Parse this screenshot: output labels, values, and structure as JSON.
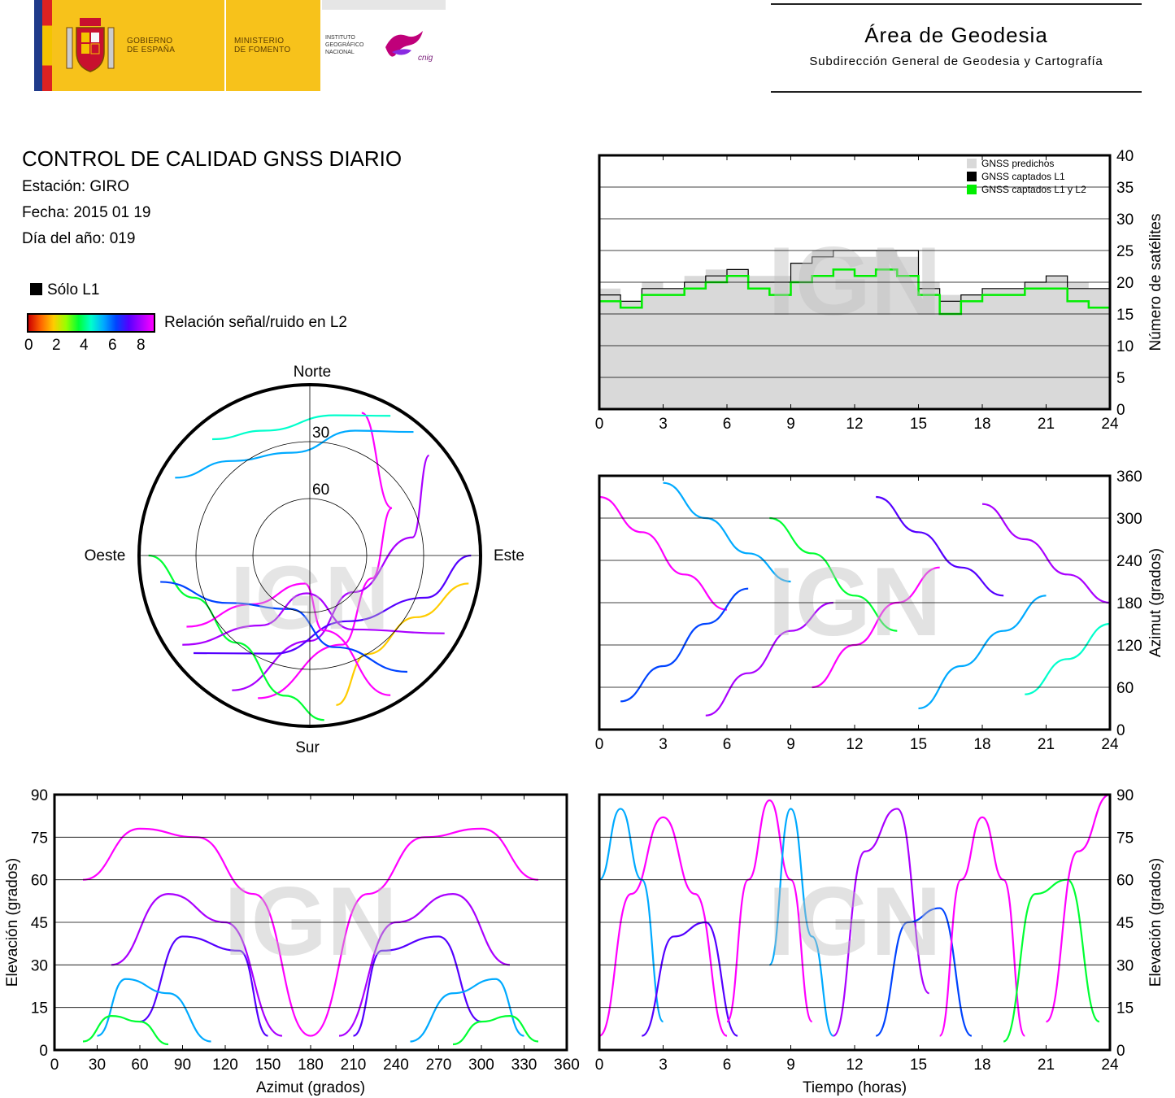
{
  "header": {
    "gov_line1": "GOBIERNO",
    "gov_line2": "DE ESPAÑA",
    "min_line1": "MINISTERIO",
    "min_line2": "DE FOMENTO",
    "ign_line1": "INSTITUTO",
    "ign_line2": "GEOGRÁFICO",
    "ign_line3": "NACIONAL",
    "cnig": "cnig",
    "title": "Área de Geodesia",
    "subtitle": "Subdirección General de Geodesia y Cartografía"
  },
  "info": {
    "title": "CONTROL DE CALIDAD GNSS DIARIO",
    "station": "Estación: GIRO",
    "date": "Fecha: 2015 01 19",
    "doy": "Día del año: 019"
  },
  "legend": {
    "l1_only": "Sólo L1",
    "colorbar_label": "Relación señal/ruido en L2",
    "colorbar_ticks": [
      "0",
      "2",
      "4",
      "6",
      "8"
    ],
    "colorbar_colors": [
      "#cc0000",
      "#ffcc00",
      "#00ff33",
      "#00aaff",
      "#5500ff",
      "#ff00ff"
    ]
  },
  "watermark": "IGN",
  "chart_data": [
    {
      "id": "satellite_count",
      "type": "line",
      "x_ticks": [
        "0",
        "3",
        "6",
        "9",
        "12",
        "15",
        "18",
        "21",
        "24"
      ],
      "y_ticks": [
        "0",
        "5",
        "10",
        "15",
        "20",
        "25",
        "30",
        "35",
        "40"
      ],
      "xlim": [
        0,
        24
      ],
      "ylim": [
        0,
        40
      ],
      "ylabel": "Número de satélites",
      "grid": true,
      "legend_position": "top-right",
      "series": [
        {
          "name": "GNSS predichos",
          "color": "#d9d9d9",
          "x": [
            0,
            1,
            2,
            3,
            4,
            5,
            6,
            7,
            8,
            9,
            10,
            11,
            12,
            13,
            14,
            15,
            16,
            17,
            18,
            19,
            20,
            21,
            22,
            23,
            24
          ],
          "values": [
            19,
            17,
            20,
            19,
            21,
            22,
            22,
            21,
            21,
            23,
            25,
            24,
            24,
            25,
            24,
            20,
            18,
            18,
            19,
            19,
            20,
            21,
            20,
            19,
            18
          ]
        },
        {
          "name": "GNSS captados L1",
          "color": "#000000",
          "x": [
            0,
            1,
            2,
            3,
            4,
            5,
            6,
            7,
            8,
            9,
            10,
            11,
            12,
            13,
            14,
            15,
            16,
            17,
            18,
            19,
            20,
            21,
            22,
            23,
            24
          ],
          "values": [
            18,
            17,
            19,
            19,
            20,
            21,
            22,
            20,
            20,
            23,
            24,
            25,
            25,
            25,
            25,
            19,
            17,
            18,
            19,
            19,
            20,
            21,
            19,
            19,
            18
          ]
        },
        {
          "name": "GNSS captados L1 y L2",
          "color": "#00ee00",
          "x": [
            0,
            1,
            2,
            3,
            4,
            5,
            6,
            7,
            8,
            9,
            10,
            11,
            12,
            13,
            14,
            15,
            16,
            17,
            18,
            19,
            20,
            21,
            22,
            23,
            24
          ],
          "values": [
            17,
            16,
            18,
            18,
            19,
            20,
            21,
            19,
            18,
            20,
            21,
            22,
            21,
            22,
            21,
            18,
            15,
            17,
            18,
            18,
            19,
            19,
            17,
            16,
            17
          ]
        }
      ]
    },
    {
      "id": "skyplot",
      "type": "scatter",
      "labels": {
        "north": "Norte",
        "south": "Sur",
        "east": "Este",
        "west": "Oeste"
      },
      "ring_labels": [
        "30",
        "60"
      ],
      "tracks": [
        {
          "color": "#ff00ff",
          "points": [
            [
              200,
              10
            ],
            [
              160,
              40
            ],
            [
              110,
              55
            ],
            [
              60,
              40
            ],
            [
              20,
              10
            ]
          ]
        },
        {
          "color": "#aa00ff",
          "points": [
            [
              210,
              8
            ],
            [
              180,
              45
            ],
            [
              130,
              60
            ],
            [
              80,
              35
            ],
            [
              50,
              8
            ]
          ]
        },
        {
          "color": "#5500ff",
          "points": [
            [
              230,
              10
            ],
            [
              200,
              35
            ],
            [
              150,
              50
            ],
            [
              110,
              25
            ],
            [
              90,
              5
            ]
          ]
        },
        {
          "color": "#00aaff",
          "points": [
            [
              300,
              8
            ],
            [
              320,
              25
            ],
            [
              350,
              35
            ],
            [
              20,
              20
            ],
            [
              40,
              5
            ]
          ]
        },
        {
          "color": "#00ff33",
          "points": [
            [
              270,
              5
            ],
            [
              250,
              25
            ],
            [
              220,
              30
            ],
            [
              190,
              15
            ],
            [
              175,
              3
            ]
          ]
        },
        {
          "color": "#ffcc00",
          "points": [
            [
              100,
              5
            ],
            [
              120,
              25
            ],
            [
              150,
              30
            ],
            [
              170,
              10
            ]
          ]
        },
        {
          "color": "#ff00ff",
          "points": [
            [
              150,
              5
            ],
            [
              170,
              50
            ],
            [
              190,
              75
            ],
            [
              230,
              50
            ],
            [
              240,
              15
            ]
          ]
        },
        {
          "color": "#0044ff",
          "points": [
            [
              140,
              10
            ],
            [
              165,
              40
            ],
            [
              200,
              60
            ],
            [
              240,
              40
            ],
            [
              260,
              10
            ]
          ]
        },
        {
          "color": "#00ffcc",
          "points": [
            [
              320,
              10
            ],
            [
              340,
              20
            ],
            [
              10,
              15
            ],
            [
              30,
              5
            ]
          ]
        },
        {
          "color": "#aa00ff",
          "points": [
            [
              120,
              8
            ],
            [
              150,
              45
            ],
            [
              185,
              70
            ],
            [
              215,
              45
            ],
            [
              235,
              8
            ]
          ]
        }
      ]
    },
    {
      "id": "azimuth_time",
      "type": "scatter",
      "x_ticks": [
        "0",
        "3",
        "6",
        "9",
        "12",
        "15",
        "18",
        "21",
        "24"
      ],
      "y_ticks": [
        "0",
        "60",
        "120",
        "180",
        "240",
        "300",
        "360"
      ],
      "xlim": [
        0,
        24
      ],
      "ylim": [
        0,
        360
      ],
      "ylabel": "Azimut (grados)",
      "grid": true,
      "tracks": [
        {
          "color": "#ff00ff",
          "x": [
            0,
            2,
            4,
            6
          ],
          "values": [
            330,
            280,
            220,
            170
          ]
        },
        {
          "color": "#0044ff",
          "x": [
            1,
            3,
            5,
            7
          ],
          "values": [
            40,
            90,
            150,
            200
          ]
        },
        {
          "color": "#00aaff",
          "x": [
            3,
            5,
            7,
            9
          ],
          "values": [
            350,
            300,
            250,
            210
          ]
        },
        {
          "color": "#aa00ff",
          "x": [
            5,
            7,
            9,
            11
          ],
          "values": [
            20,
            80,
            140,
            180
          ]
        },
        {
          "color": "#00ff33",
          "x": [
            8,
            10,
            12,
            14
          ],
          "values": [
            300,
            250,
            190,
            140
          ]
        },
        {
          "color": "#ff00ff",
          "x": [
            10,
            12,
            14,
            16
          ],
          "values": [
            60,
            120,
            180,
            230
          ]
        },
        {
          "color": "#5500ff",
          "x": [
            13,
            15,
            17,
            19
          ],
          "values": [
            330,
            280,
            230,
            190
          ]
        },
        {
          "color": "#00aaff",
          "x": [
            15,
            17,
            19,
            21
          ],
          "values": [
            30,
            90,
            140,
            190
          ]
        },
        {
          "color": "#aa00ff",
          "x": [
            18,
            20,
            22,
            24
          ],
          "values": [
            320,
            270,
            220,
            180
          ]
        },
        {
          "color": "#00ffcc",
          "x": [
            20,
            22,
            24
          ],
          "values": [
            50,
            100,
            150
          ]
        }
      ]
    },
    {
      "id": "elevation_azimuth",
      "type": "scatter",
      "x_ticks": [
        "0",
        "30",
        "60",
        "90",
        "120",
        "150",
        "180",
        "210",
        "240",
        "270",
        "300",
        "330",
        "360"
      ],
      "y_ticks": [
        "0",
        "15",
        "30",
        "45",
        "60",
        "75",
        "90"
      ],
      "xlim": [
        0,
        360
      ],
      "ylim": [
        0,
        90
      ],
      "xlabel": "Azimut (grados)",
      "ylabel": "Elevación (grados)",
      "grid": true,
      "tracks": [
        {
          "color": "#ff00ff",
          "x": [
            20,
            60,
            100,
            140,
            180
          ],
          "values": [
            60,
            78,
            75,
            55,
            5
          ]
        },
        {
          "color": "#ff00ff",
          "x": [
            180,
            220,
            260,
            300,
            340
          ],
          "values": [
            5,
            55,
            75,
            78,
            60
          ]
        },
        {
          "color": "#aa00ff",
          "x": [
            40,
            80,
            120,
            160
          ],
          "values": [
            30,
            55,
            45,
            5
          ]
        },
        {
          "color": "#aa00ff",
          "x": [
            200,
            240,
            280,
            320
          ],
          "values": [
            5,
            45,
            55,
            30
          ]
        },
        {
          "color": "#5500ff",
          "x": [
            60,
            90,
            130,
            150
          ],
          "values": [
            10,
            40,
            35,
            5
          ]
        },
        {
          "color": "#5500ff",
          "x": [
            210,
            230,
            270,
            300
          ],
          "values": [
            5,
            35,
            40,
            10
          ]
        },
        {
          "color": "#00aaff",
          "x": [
            30,
            50,
            80,
            110
          ],
          "values": [
            5,
            25,
            20,
            3
          ]
        },
        {
          "color": "#00aaff",
          "x": [
            250,
            280,
            310,
            330
          ],
          "values": [
            3,
            20,
            25,
            5
          ]
        },
        {
          "color": "#00ff33",
          "x": [
            20,
            40,
            60,
            80
          ],
          "values": [
            3,
            12,
            10,
            2
          ]
        },
        {
          "color": "#00ff33",
          "x": [
            280,
            300,
            320,
            340
          ],
          "values": [
            2,
            10,
            12,
            3
          ]
        }
      ]
    },
    {
      "id": "elevation_time",
      "type": "scatter",
      "x_ticks": [
        "0",
        "3",
        "6",
        "9",
        "12",
        "15",
        "18",
        "21",
        "24"
      ],
      "y_ticks": [
        "0",
        "15",
        "30",
        "45",
        "60",
        "75",
        "90"
      ],
      "xlim": [
        0,
        24
      ],
      "ylim": [
        0,
        90
      ],
      "xlabel": "Tiempo (horas)",
      "ylabel": "Elevación (grados)",
      "grid": true,
      "tracks": [
        {
          "color": "#ff00ff",
          "x": [
            0,
            1.5,
            3,
            4.5,
            6
          ],
          "values": [
            5,
            55,
            82,
            55,
            5
          ]
        },
        {
          "color": "#00aaff",
          "x": [
            0,
            1,
            2,
            3
          ],
          "values": [
            60,
            85,
            60,
            10
          ]
        },
        {
          "color": "#5500ff",
          "x": [
            2,
            3.5,
            5,
            6.5
          ],
          "values": [
            5,
            40,
            45,
            5
          ]
        },
        {
          "color": "#ff00ff",
          "x": [
            6,
            7,
            8,
            9,
            10
          ],
          "values": [
            10,
            60,
            88,
            60,
            10
          ]
        },
        {
          "color": "#00aaff",
          "x": [
            8,
            9,
            10,
            11
          ],
          "values": [
            30,
            85,
            40,
            5
          ]
        },
        {
          "color": "#aa00ff",
          "x": [
            11,
            12.5,
            14,
            15.5
          ],
          "values": [
            5,
            70,
            85,
            20
          ]
        },
        {
          "color": "#0044ff",
          "x": [
            13,
            14.5,
            16,
            17.5
          ],
          "values": [
            5,
            45,
            50,
            5
          ]
        },
        {
          "color": "#ff00ff",
          "x": [
            16,
            17,
            18,
            19,
            20
          ],
          "values": [
            5,
            60,
            82,
            60,
            5
          ]
        },
        {
          "color": "#00ff33",
          "x": [
            19,
            20.5,
            22,
            23.5
          ],
          "values": [
            3,
            55,
            60,
            10
          ]
        },
        {
          "color": "#ff00ff",
          "x": [
            21,
            22.5,
            24
          ],
          "values": [
            10,
            70,
            90
          ]
        }
      ]
    }
  ]
}
